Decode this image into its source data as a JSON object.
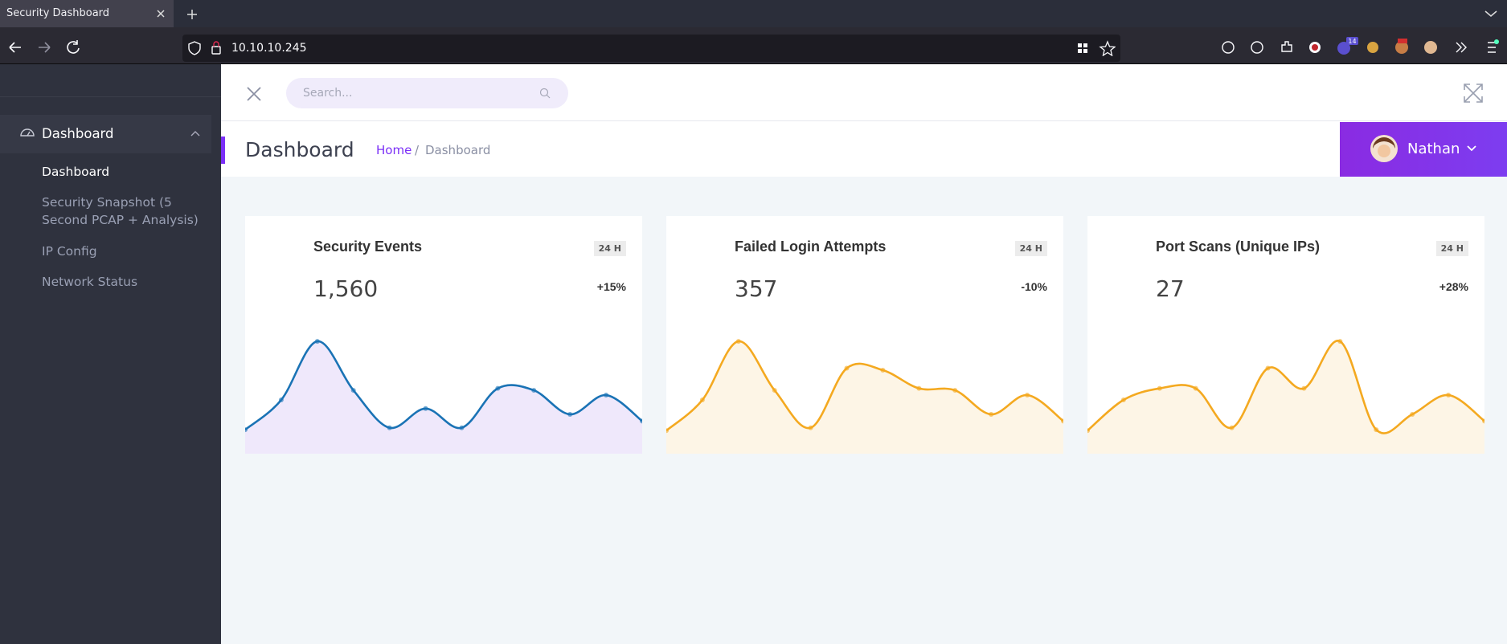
{
  "browser": {
    "tab_title": "Security Dashboard",
    "url": "10.10.10.245",
    "badge": "14"
  },
  "sidebar": {
    "section": "Dashboard",
    "items": [
      "Dashboard",
      "Security Snapshot (5 Second PCAP + Analysis)",
      "IP Config",
      "Network Status"
    ]
  },
  "header": {
    "search_placeholder": "Search..."
  },
  "page": {
    "title": "Dashboard",
    "breadcrumb": [
      "Home",
      "Dashboard"
    ],
    "user": "Nathan"
  },
  "cards": [
    {
      "title": "Security Events",
      "period": "24 H",
      "value": "1,560",
      "change": "+15%",
      "color": "#1a73b5",
      "fill": "#efe8fb",
      "sparkline": [
        25,
        56,
        117,
        66,
        27,
        47,
        27,
        68,
        66,
        41,
        61,
        34
      ]
    },
    {
      "title": "Failed Login Attempts",
      "period": "24 H",
      "value": "357",
      "change": "-10%",
      "color": "#f4a920",
      "fill": "#fdf5e6",
      "sparkline": [
        24,
        56,
        117,
        66,
        27,
        89,
        87,
        68,
        66,
        41,
        61,
        34
      ]
    },
    {
      "title": "Port Scans (Unique IPs)",
      "period": "24 H",
      "value": "27",
      "change": "+28%",
      "color": "#f4a920",
      "fill": "#fdf5e6",
      "sparkline": [
        24,
        56,
        68,
        68,
        27,
        89,
        68,
        117,
        25,
        41,
        61,
        34
      ]
    }
  ]
}
